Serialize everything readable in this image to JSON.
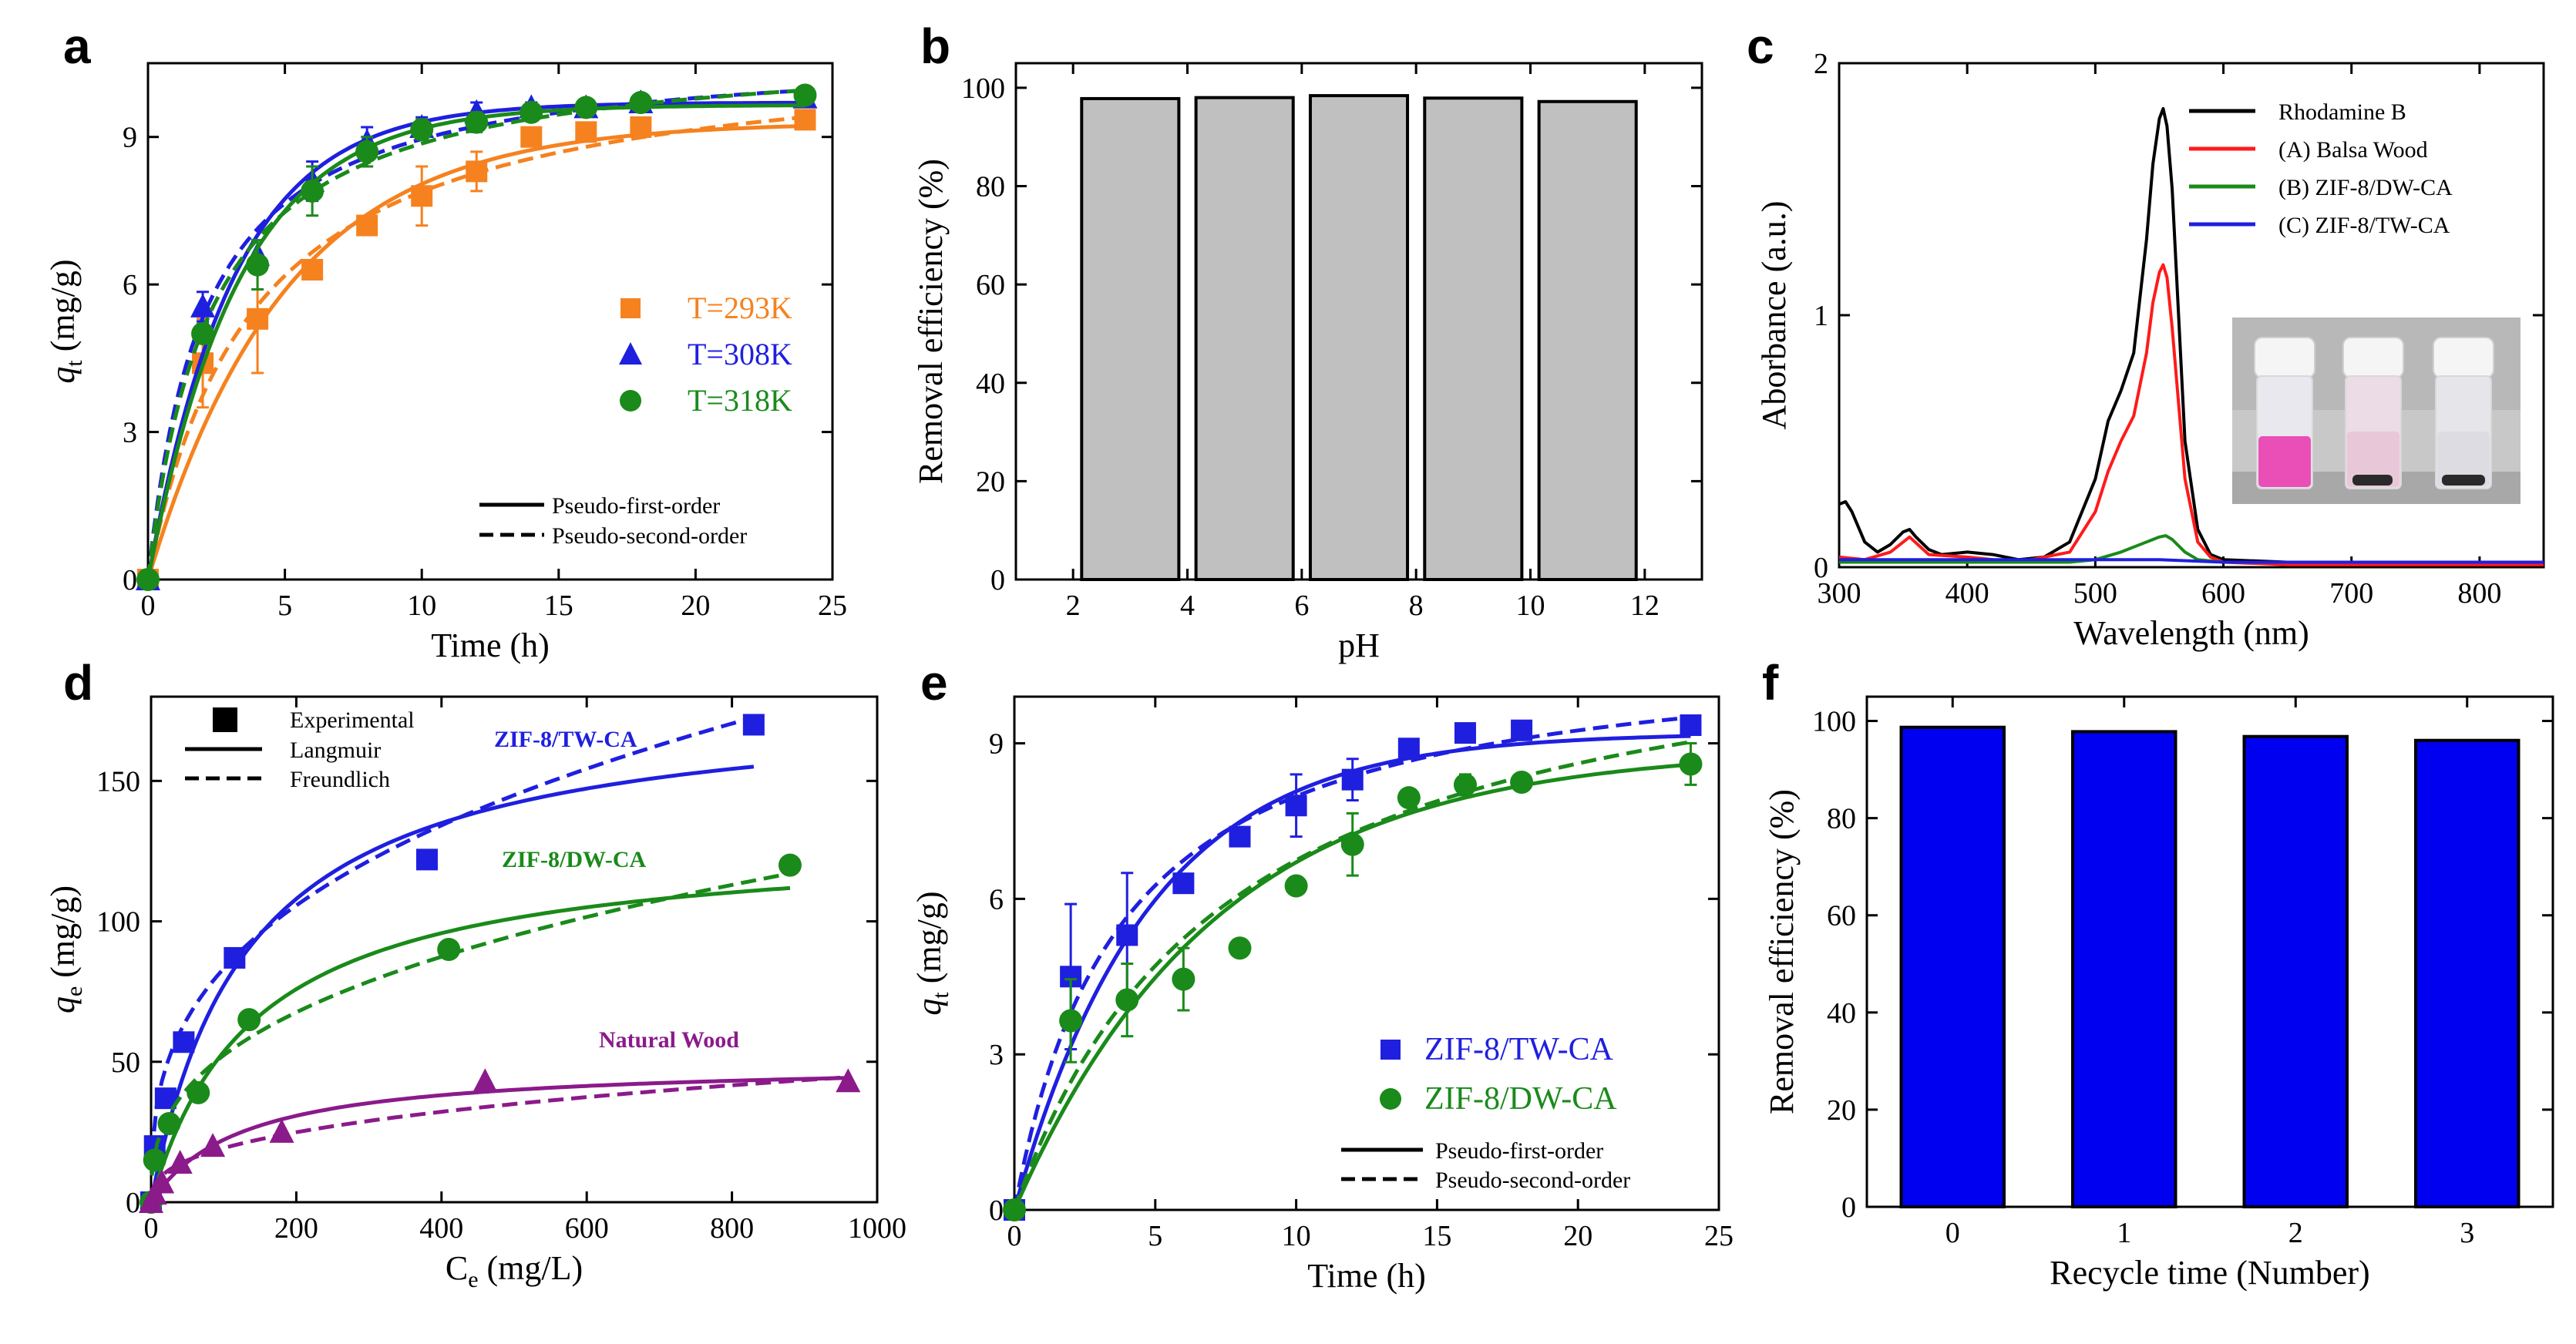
{
  "colors": {
    "orange": "#f5821f",
    "blue": "#1f1fe0",
    "green": "#1a8a1a",
    "purple": "#8b1a8b",
    "red": "#ff1a1a",
    "black": "#000000",
    "grey_bar": "#c0c0c0",
    "blue_bar": "#0000f0"
  },
  "chart_data": [
    {
      "panel": "a",
      "type": "scatter",
      "xlabel": "Time (h)",
      "ylabel_main": "q",
      "ylabel_sub": "t",
      "ylabel_unit": " (mg/g)",
      "xlim": [
        0,
        25
      ],
      "ylim": [
        0,
        10.5
      ],
      "xticks": [
        0,
        5,
        10,
        15,
        20,
        25
      ],
      "yticks": [
        0,
        3,
        6,
        9
      ],
      "legend": {
        "fit_solid": "Pseudo-first-order",
        "fit_dashed": "Pseudo-second-order"
      },
      "series": [
        {
          "name": "T=293K",
          "color_key": "orange",
          "marker": "square",
          "x": [
            0,
            2,
            4,
            6,
            8,
            10,
            12,
            14,
            16,
            18,
            24
          ],
          "y": [
            0,
            4.4,
            5.3,
            6.3,
            7.2,
            7.8,
            8.3,
            9.0,
            9.1,
            9.2,
            9.35
          ],
          "err": [
            0,
            0.9,
            1.1,
            0,
            0,
            0.6,
            0.4,
            0,
            0,
            0,
            0
          ],
          "pfo": {
            "qe": 9.3,
            "k": 0.2
          },
          "pso": {
            "qe": 10.9,
            "k": 0.024
          }
        },
        {
          "name": "T=308K",
          "color_key": "blue",
          "marker": "triangle",
          "x": [
            0,
            2,
            4,
            6,
            8,
            10,
            12,
            14,
            16,
            18,
            24
          ],
          "y": [
            0,
            5.55,
            6.6,
            8.1,
            8.9,
            9.2,
            9.5,
            9.6,
            9.6,
            9.7,
            9.8
          ],
          "err": [
            0,
            0.3,
            0.3,
            0.4,
            0.3,
            0.2,
            0.2,
            0.1,
            0.1,
            0.1,
            0.1
          ],
          "pfo": {
            "qe": 9.7,
            "k": 0.32
          },
          "pso": {
            "qe": 10.8,
            "k": 0.045
          }
        },
        {
          "name": "T=318K",
          "color_key": "green",
          "marker": "circle",
          "x": [
            0,
            2,
            4,
            6,
            8,
            10,
            12,
            14,
            16,
            18,
            24
          ],
          "y": [
            0,
            5.0,
            6.4,
            7.9,
            8.7,
            9.15,
            9.3,
            9.5,
            9.6,
            9.7,
            9.85
          ],
          "err": [
            0,
            0.2,
            0.5,
            0.5,
            0.3,
            0.2,
            0.2,
            0.1,
            0.1,
            0.1,
            0.1
          ],
          "pfo": {
            "qe": 9.65,
            "k": 0.3
          },
          "pso": {
            "qe": 10.9,
            "k": 0.04
          }
        }
      ]
    },
    {
      "panel": "b",
      "type": "bar",
      "xlabel": "pH",
      "ylabel": "Removal efficiency (%)",
      "xlim": [
        1,
        13
      ],
      "ylim": [
        0,
        105
      ],
      "xticks": [
        2,
        4,
        6,
        8,
        10,
        12
      ],
      "yticks": [
        0,
        20,
        40,
        60,
        80,
        100
      ],
      "x": [
        3,
        5,
        7,
        9,
        11
      ],
      "values": [
        97.8,
        98.0,
        98.4,
        97.9,
        97.2
      ],
      "color_key": "grey_bar"
    },
    {
      "panel": "c",
      "type": "line",
      "xlabel": "Wavelength (nm)",
      "ylabel": "Aborbance (a.u.)",
      "xlim": [
        300,
        850
      ],
      "ylim": [
        0,
        2
      ],
      "xticks": [
        300,
        400,
        500,
        600,
        700,
        800
      ],
      "yticks": [
        0,
        1,
        2
      ],
      "inset": "photograph of three vials: pink, light pink, clear",
      "series": [
        {
          "name": "Rhodamine B",
          "color_key": "black",
          "x": [
            300,
            305,
            310,
            320,
            330,
            340,
            350,
            355,
            360,
            370,
            380,
            400,
            420,
            440,
            460,
            480,
            500,
            510,
            520,
            530,
            540,
            545,
            550,
            553,
            556,
            560,
            565,
            570,
            580,
            590,
            600,
            650,
            700,
            800,
            850
          ],
          "y": [
            0.25,
            0.26,
            0.22,
            0.1,
            0.06,
            0.09,
            0.14,
            0.15,
            0.12,
            0.07,
            0.05,
            0.06,
            0.05,
            0.03,
            0.04,
            0.1,
            0.35,
            0.58,
            0.7,
            0.85,
            1.3,
            1.6,
            1.78,
            1.82,
            1.75,
            1.5,
            1.0,
            0.5,
            0.15,
            0.05,
            0.03,
            0.02,
            0.02,
            0.02,
            0.02
          ]
        },
        {
          "name": "(A) Balsa Wood",
          "color_key": "red",
          "x": [
            300,
            320,
            340,
            355,
            370,
            400,
            440,
            480,
            500,
            510,
            520,
            530,
            540,
            545,
            550,
            553,
            556,
            560,
            565,
            570,
            580,
            590,
            600,
            650,
            700,
            800,
            850
          ],
          "y": [
            0.04,
            0.03,
            0.06,
            0.12,
            0.05,
            0.04,
            0.02,
            0.06,
            0.22,
            0.38,
            0.5,
            0.6,
            0.85,
            1.05,
            1.17,
            1.2,
            1.15,
            0.95,
            0.65,
            0.35,
            0.1,
            0.04,
            0.02,
            0.01,
            0.01,
            0.01,
            0.01
          ]
        },
        {
          "name": "(B) ZIF-8/DW-CA",
          "color_key": "green",
          "x": [
            300,
            400,
            480,
            500,
            520,
            530,
            540,
            550,
            555,
            560,
            570,
            580,
            600,
            700,
            850
          ],
          "y": [
            0.02,
            0.02,
            0.02,
            0.03,
            0.06,
            0.08,
            0.1,
            0.12,
            0.125,
            0.11,
            0.06,
            0.03,
            0.02,
            0.02,
            0.02
          ]
        },
        {
          "name": "(C) ZIF-8/TW-CA",
          "color_key": "blue",
          "x": [
            300,
            400,
            500,
            550,
            600,
            700,
            850
          ],
          "y": [
            0.03,
            0.03,
            0.03,
            0.03,
            0.02,
            0.02,
            0.02
          ]
        }
      ]
    },
    {
      "panel": "d",
      "type": "scatter",
      "xlabel_main": "C",
      "xlabel_sub": "e",
      "xlabel_unit": " (mg/L)",
      "ylabel_main": "q",
      "ylabel_sub": "e",
      "ylabel_unit": " (mg/g)",
      "xlim": [
        0,
        1000
      ],
      "ylim": [
        0,
        180
      ],
      "xticks": [
        0,
        200,
        400,
        600,
        800,
        1000
      ],
      "yticks": [
        0,
        50,
        100,
        150
      ],
      "legend": {
        "marker": "Experimental",
        "fit_solid": "Langmuir",
        "fit_dashed": "Freundlich"
      },
      "series": [
        {
          "name": "ZIF-8/TW-CA",
          "color_key": "blue",
          "marker": "square",
          "x": [
            0,
            5,
            20,
            45,
            115,
            380,
            830
          ],
          "y": [
            0,
            20,
            37,
            57,
            87,
            122,
            170
          ],
          "langmuir": {
            "qm": 180,
            "KL": 0.0075,
            "xmax": 830
          },
          "freundlich": {
            "KF": 17,
            "n": 2.9,
            "xmax": 830
          }
        },
        {
          "name": "ZIF-8/DW-CA",
          "color_key": "green",
          "marker": "circle",
          "x": [
            0,
            5,
            25,
            65,
            135,
            410,
            880
          ],
          "y": [
            0,
            15,
            28,
            39,
            65,
            90,
            120
          ],
          "langmuir": {
            "qm": 130,
            "KL": 0.007,
            "xmax": 880
          },
          "freundlich": {
            "KF": 9.5,
            "n": 2.7,
            "xmax": 880
          }
        },
        {
          "name": "Natural Wood",
          "color_key": "purple",
          "marker": "triangle",
          "x": [
            0,
            5,
            15,
            40,
            85,
            180,
            460,
            960
          ],
          "y": [
            0,
            3,
            7,
            14,
            20,
            25,
            43,
            43
          ],
          "langmuir": {
            "qm": 50,
            "KL": 0.008,
            "xmax": 960
          },
          "freundlich": {
            "KF": 3.5,
            "n": 2.7,
            "xmax": 960
          }
        }
      ]
    },
    {
      "panel": "e",
      "type": "scatter",
      "xlabel": "Time (h)",
      "ylabel_main": "q",
      "ylabel_sub": "t",
      "ylabel_unit": " (mg/g)",
      "xlim": [
        0,
        25
      ],
      "ylim": [
        0,
        9.9
      ],
      "xticks": [
        0,
        5,
        10,
        15,
        20,
        25
      ],
      "yticks": [
        0,
        3,
        6,
        9
      ],
      "legend": {
        "fit_solid": "Pseudo-first-order",
        "fit_dashed": "Pseudo-second-order"
      },
      "series": [
        {
          "name": "ZIF-8/TW-CA",
          "color_key": "blue",
          "marker": "square",
          "x": [
            0,
            2,
            4,
            6,
            8,
            10,
            12,
            14,
            16,
            18,
            24
          ],
          "y": [
            0,
            4.5,
            5.3,
            6.3,
            7.2,
            7.8,
            8.3,
            8.9,
            9.2,
            9.25,
            9.35
          ],
          "err": [
            0,
            1.4,
            1.2,
            0,
            0,
            0.6,
            0.4,
            0,
            0,
            0,
            0
          ],
          "pfo": {
            "qe": 9.2,
            "k": 0.21
          },
          "pso": {
            "qe": 11.0,
            "k": 0.024
          }
        },
        {
          "name": "ZIF-8/DW-CA",
          "color_key": "green",
          "marker": "circle",
          "x": [
            0,
            2,
            4,
            6,
            8,
            10,
            12,
            14,
            16,
            18,
            24
          ],
          "y": [
            0,
            3.65,
            4.05,
            4.45,
            5.05,
            6.25,
            7.05,
            7.95,
            8.2,
            8.25,
            8.6
          ],
          "err": [
            0,
            0.8,
            0.7,
            0.6,
            0,
            0,
            0.6,
            0,
            0.2,
            0,
            0.4
          ],
          "pfo": {
            "qe": 8.9,
            "k": 0.14
          },
          "pso": {
            "qe": 11.9,
            "k": 0.011
          }
        }
      ]
    },
    {
      "panel": "f",
      "type": "bar",
      "xlabel": "Recycle time (Number)",
      "ylabel": "Removal efficiency (%)",
      "xlim": [
        -0.5,
        3.5
      ],
      "ylim": [
        0,
        105
      ],
      "xticks": [
        0,
        1,
        2,
        3
      ],
      "yticks": [
        0,
        20,
        40,
        60,
        80,
        100
      ],
      "x": [
        0,
        1,
        2,
        3
      ],
      "values": [
        98.7,
        97.8,
        96.8,
        96.0
      ],
      "color_key": "blue_bar"
    }
  ]
}
